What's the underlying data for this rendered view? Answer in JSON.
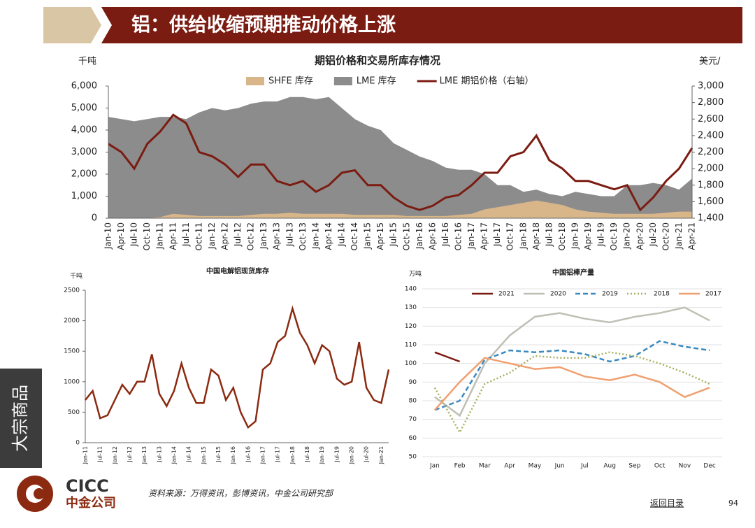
{
  "header": {
    "title": "铝：供给收缩预期推动价格上涨"
  },
  "side_tab": "大宗商品",
  "chart_data": [
    {
      "type": "combo",
      "title": "期铝价格和交易所库存情况",
      "ylabel": "千吨",
      "y2label": "美元/",
      "categories": [
        "Jan-10",
        "Apr-10",
        "Jul-10",
        "Oct-10",
        "Jan-11",
        "Apr-11",
        "Jul-11",
        "Oct-11",
        "Jan-12",
        "Apr-12",
        "Jul-12",
        "Oct-12",
        "Jan-13",
        "Apr-13",
        "Jul-13",
        "Oct-13",
        "Jan-14",
        "Apr-14",
        "Jul-14",
        "Oct-14",
        "Jan-15",
        "Apr-15",
        "Jul-15",
        "Oct-15",
        "Jan-16",
        "Apr-16",
        "Jul-16",
        "Oct-16",
        "Jan-17",
        "Apr-17",
        "Jul-17",
        "Oct-17",
        "Jan-18",
        "Apr-18",
        "Jul-18",
        "Oct-18",
        "Jan-19",
        "Apr-19",
        "Jul-19",
        "Oct-19",
        "Jan-20",
        "Apr-20",
        "Jul-20",
        "Oct-20",
        "Jan-21",
        "Apr-21"
      ],
      "series": [
        {
          "name": "SHFE 库存",
          "kind": "area",
          "color": "#d9b68a",
          "values": [
            0,
            0,
            0,
            0,
            50,
            200,
            150,
            100,
            100,
            100,
            100,
            150,
            200,
            200,
            250,
            200,
            200,
            200,
            200,
            150,
            150,
            150,
            150,
            100,
            100,
            100,
            100,
            150,
            200,
            400,
            500,
            600,
            700,
            800,
            700,
            600,
            400,
            300,
            250,
            200,
            200,
            200,
            200,
            250,
            300,
            300
          ]
        },
        {
          "name": "LME 库存",
          "kind": "area",
          "color": "#8c8c8c",
          "values": [
            4600,
            4500,
            4400,
            4500,
            4600,
            4600,
            4500,
            4800,
            5000,
            4900,
            5000,
            5200,
            5300,
            5300,
            5500,
            5500,
            5400,
            5500,
            5000,
            4500,
            4200,
            4000,
            3400,
            3100,
            2800,
            2600,
            2300,
            2200,
            2200,
            2000,
            1500,
            1500,
            1200,
            1300,
            1100,
            1000,
            1200,
            1100,
            1000,
            1000,
            1500,
            1500,
            1600,
            1500,
            1300,
            1800
          ]
        },
        {
          "name": "LME 期铝价格（右轴）",
          "kind": "line",
          "axis": "y2",
          "color": "#7b1c12",
          "values": [
            2300,
            2200,
            2000,
            2300,
            2450,
            2650,
            2550,
            2200,
            2150,
            2050,
            1900,
            2050,
            2050,
            1850,
            1800,
            1850,
            1720,
            1800,
            1950,
            1980,
            1800,
            1800,
            1650,
            1550,
            1500,
            1550,
            1650,
            1680,
            1800,
            1950,
            1950,
            2150,
            2200,
            2400,
            2100,
            2000,
            1850,
            1850,
            1800,
            1750,
            1800,
            1500,
            1650,
            1850,
            2000,
            2250
          ]
        }
      ],
      "ylim": [
        0,
        6000
      ],
      "yticks": [
        0,
        {
          "value": 1000,
          "label": "1,000"
        },
        {
          "value": 2000,
          "label": "2,000"
        },
        {
          "value": 3000,
          "label": "3,000"
        },
        {
          "value": 4000,
          "label": "4,000"
        },
        {
          "value": 5000,
          "label": "5,000"
        },
        {
          "value": 6000,
          "label": "6,000"
        }
      ],
      "y2lim": [
        1400,
        3000
      ],
      "y2ticks": [
        {
          "value": 1400,
          "label": "1,400"
        },
        {
          "value": 1600,
          "label": "1,600"
        },
        {
          "value": 1800,
          "label": "1,800"
        },
        {
          "value": 2000,
          "label": "2,000"
        },
        {
          "value": 2200,
          "label": "2,200"
        },
        {
          "value": 2400,
          "label": "2,400"
        },
        {
          "value": 2600,
          "label": "2,600"
        },
        {
          "value": 2800,
          "label": "2,800"
        },
        {
          "value": 3000,
          "label": "3,000"
        }
      ]
    },
    {
      "type": "line",
      "title": "中国电解铝现货库存",
      "ylabel": "千吨",
      "categories": [
        "Jan-11",
        null,
        "Jul-11",
        null,
        "Jan-12",
        null,
        "Jul-12",
        null,
        "Jan-13",
        null,
        "Jul-13",
        null,
        "Jan-14",
        null,
        "Jul-14",
        null,
        "Jan-15",
        null,
        "Jul-15",
        null,
        "Jan-16",
        null,
        "Jul-16",
        null,
        "Jan-17",
        null,
        "Jul-17",
        null,
        "Jan-18",
        null,
        "Jul-18",
        null,
        "Jan-19",
        null,
        "Jul-19",
        null,
        "Jan-20",
        null,
        "Jul-20",
        null,
        "Jan-21",
        null
      ],
      "series": [
        {
          "name": null,
          "color": "#8b2a10",
          "values": [
            700,
            850,
            400,
            450,
            700,
            950,
            800,
            1000,
            1000,
            1450,
            800,
            600,
            850,
            1300,
            900,
            650,
            650,
            1200,
            1100,
            700,
            900,
            500,
            250,
            350,
            1200,
            1300,
            1650,
            1750,
            2200,
            1800,
            1600,
            1300,
            1600,
            1500,
            1050,
            950,
            1000,
            1650,
            900,
            700,
            650,
            1200
          ]
        }
      ],
      "ylim": [
        0,
        2500
      ],
      "yticks": [
        0,
        500,
        1000,
        1500,
        2000,
        2500
      ]
    },
    {
      "type": "line",
      "title": "中国铝棒产量",
      "ylabel": "万吨",
      "grid": true,
      "legend": "top",
      "categories": [
        "Jan",
        "Feb",
        "Mar",
        "Apr",
        "May",
        "Jun",
        "Jul",
        "Aug",
        "Sep",
        "Oct",
        "Nov",
        "Dec"
      ],
      "series": [
        {
          "name": "2021",
          "color": "#7b1c12",
          "dash": "solid",
          "values": [
            106,
            101,
            null,
            null,
            null,
            null,
            null,
            null,
            null,
            null,
            null,
            null
          ]
        },
        {
          "name": "2020",
          "color": "#bfbfb5",
          "dash": "solid",
          "values": [
            82,
            72,
            100,
            115,
            125,
            127,
            124,
            122,
            125,
            127,
            130,
            123
          ]
        },
        {
          "name": "2019",
          "color": "#3a8ac0",
          "dash": "dashed",
          "values": [
            75,
            80,
            102,
            107,
            106,
            107,
            105,
            101,
            104,
            112,
            109,
            107
          ]
        },
        {
          "name": "2018",
          "color": "#a8b060",
          "dash": "dotted",
          "values": [
            87,
            63,
            89,
            95,
            104,
            103,
            103,
            106,
            104,
            100,
            95,
            89
          ]
        },
        {
          "name": "2017",
          "color": "#f0a070",
          "dash": "solid",
          "values": [
            75,
            90,
            103,
            100,
            97,
            98,
            93,
            91,
            94,
            90,
            82,
            87
          ]
        }
      ],
      "ylim": [
        50,
        140
      ],
      "yticks": [
        50,
        60,
        70,
        80,
        90,
        100,
        110,
        120,
        130,
        140
      ]
    }
  ],
  "footer": {
    "logo_en": "CICC",
    "logo_cn": "中金公司",
    "source": "资料来源：万得资讯，彭博资讯，中金公司研究部",
    "link": "返回目录",
    "page": "94"
  }
}
